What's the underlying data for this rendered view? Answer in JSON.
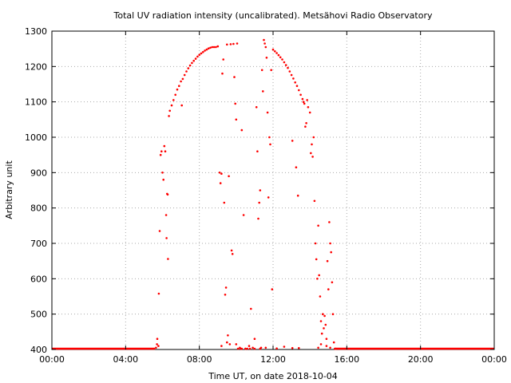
{
  "chart_data": {
    "type": "scatter",
    "title": "Total UV radiation intensity (uncalibrated). Metsähovi Radio Observatory",
    "xlabel": "Time UT, on date 2018-10-04",
    "ylabel": "Arbitrary unit",
    "xlim": [
      0,
      24
    ],
    "ylim": [
      400,
      1300
    ],
    "x_ticks": [
      0,
      4,
      8,
      12,
      16,
      20,
      24
    ],
    "x_tick_labels": [
      "00:00",
      "04:00",
      "08:00",
      "12:00",
      "16:00",
      "20:00",
      "00:00"
    ],
    "y_ticks": [
      400,
      500,
      600,
      700,
      800,
      900,
      1000,
      1100,
      1200,
      1300
    ],
    "y_tick_labels": [
      "400",
      "500",
      "600",
      "700",
      "800",
      "900",
      "1000",
      "1100",
      "1200",
      "1300"
    ],
    "grid": true,
    "legend": "none",
    "point_color": "#ff0000",
    "series": [
      {
        "values": [
          [
            5.65,
            405
          ],
          [
            5.7,
            415
          ],
          [
            5.72,
            430
          ],
          [
            5.78,
            410
          ],
          [
            5.8,
            558
          ],
          [
            5.85,
            735
          ],
          [
            5.9,
            950
          ],
          [
            5.95,
            960
          ],
          [
            6.0,
            900
          ],
          [
            6.05,
            880
          ],
          [
            6.1,
            975
          ],
          [
            6.15,
            960
          ],
          [
            6.2,
            780
          ],
          [
            6.22,
            715
          ],
          [
            6.25,
            840
          ],
          [
            6.28,
            838
          ],
          [
            6.3,
            656
          ],
          [
            6.35,
            1060
          ],
          [
            6.4,
            1075
          ],
          [
            6.5,
            1090
          ],
          [
            6.6,
            1105
          ],
          [
            6.7,
            1120
          ],
          [
            6.8,
            1135
          ],
          [
            6.9,
            1145
          ],
          [
            7.0,
            1158
          ],
          [
            7.05,
            1090
          ],
          [
            7.1,
            1165
          ],
          [
            7.2,
            1176
          ],
          [
            7.3,
            1186
          ],
          [
            7.4,
            1195
          ],
          [
            7.5,
            1203
          ],
          [
            7.6,
            1210
          ],
          [
            7.7,
            1216
          ],
          [
            7.8,
            1222
          ],
          [
            7.9,
            1228
          ],
          [
            8.0,
            1233
          ],
          [
            8.1,
            1237
          ],
          [
            8.2,
            1241
          ],
          [
            8.3,
            1245
          ],
          [
            8.4,
            1248
          ],
          [
            8.5,
            1251
          ],
          [
            8.6,
            1253
          ],
          [
            8.7,
            1255
          ],
          [
            8.8,
            1255
          ],
          [
            8.9,
            1255
          ],
          [
            9.0,
            1257
          ],
          [
            9.1,
            900
          ],
          [
            9.15,
            870
          ],
          [
            9.2,
            897
          ],
          [
            9.25,
            1180
          ],
          [
            9.3,
            1220
          ],
          [
            9.35,
            815
          ],
          [
            9.4,
            555
          ],
          [
            9.45,
            575
          ],
          [
            9.5,
            1262
          ],
          [
            9.55,
            440
          ],
          [
            9.6,
            890
          ],
          [
            9.65,
            415
          ],
          [
            9.7,
            1263
          ],
          [
            9.75,
            680
          ],
          [
            9.8,
            670
          ],
          [
            9.85,
            1264
          ],
          [
            9.9,
            1170
          ],
          [
            9.95,
            1095
          ],
          [
            10.0,
            1050
          ],
          [
            10.05,
            1265
          ],
          [
            10.1,
            400
          ],
          [
            10.2,
            405
          ],
          [
            10.3,
            1020
          ],
          [
            10.4,
            780
          ],
          [
            10.5,
            402
          ],
          [
            10.6,
            400
          ],
          [
            10.7,
            410
          ],
          [
            10.8,
            515
          ],
          [
            10.9,
            405
          ],
          [
            11.0,
            430
          ],
          [
            11.1,
            1085
          ],
          [
            11.15,
            960
          ],
          [
            11.2,
            770
          ],
          [
            11.25,
            815
          ],
          [
            11.3,
            850
          ],
          [
            11.35,
            405
          ],
          [
            11.4,
            1190
          ],
          [
            11.45,
            1130
          ],
          [
            11.5,
            1275
          ],
          [
            11.55,
            1265
          ],
          [
            11.6,
            1255
          ],
          [
            11.65,
            1225
          ],
          [
            11.7,
            1070
          ],
          [
            11.75,
            830
          ],
          [
            11.8,
            1000
          ],
          [
            11.85,
            980
          ],
          [
            11.9,
            1190
          ],
          [
            11.95,
            570
          ],
          [
            12.0,
            1248
          ],
          [
            12.1,
            1243
          ],
          [
            12.2,
            1238
          ],
          [
            12.3,
            1232
          ],
          [
            12.4,
            1226
          ],
          [
            12.5,
            1220
          ],
          [
            12.6,
            1212
          ],
          [
            12.7,
            1204
          ],
          [
            12.8,
            1196
          ],
          [
            12.9,
            1186
          ],
          [
            13.0,
            1176
          ],
          [
            13.05,
            990
          ],
          [
            13.1,
            1166
          ],
          [
            13.2,
            1155
          ],
          [
            13.25,
            915
          ],
          [
            13.3,
            1145
          ],
          [
            13.35,
            835
          ],
          [
            13.4,
            1133
          ],
          [
            13.5,
            1120
          ],
          [
            13.6,
            1108
          ],
          [
            13.65,
            1100
          ],
          [
            13.7,
            1095
          ],
          [
            13.75,
            1030
          ],
          [
            13.8,
            1040
          ],
          [
            13.85,
            1105
          ],
          [
            13.9,
            1085
          ],
          [
            14.0,
            1070
          ],
          [
            14.05,
            955
          ],
          [
            14.1,
            980
          ],
          [
            14.15,
            945
          ],
          [
            14.2,
            1000
          ],
          [
            14.25,
            820
          ],
          [
            14.3,
            700
          ],
          [
            14.35,
            655
          ],
          [
            14.4,
            600
          ],
          [
            14.45,
            750
          ],
          [
            14.5,
            610
          ],
          [
            14.55,
            550
          ],
          [
            14.6,
            480
          ],
          [
            14.65,
            445
          ],
          [
            14.7,
            500
          ],
          [
            14.75,
            460
          ],
          [
            14.8,
            495
          ],
          [
            14.85,
            470
          ],
          [
            14.9,
            430
          ],
          [
            14.95,
            650
          ],
          [
            15.0,
            570
          ],
          [
            15.05,
            760
          ],
          [
            15.1,
            700
          ],
          [
            15.15,
            675
          ],
          [
            15.2,
            590
          ],
          [
            15.25,
            500
          ],
          [
            15.3,
            420
          ],
          [
            15.35,
            402
          ],
          [
            15.4,
            400
          ],
          [
            10.3,
            400
          ],
          [
            10.5,
            402
          ],
          [
            11.0,
            400
          ],
          [
            11.3,
            400
          ],
          [
            12.2,
            403
          ],
          [
            12.6,
            408
          ],
          [
            13.4,
            404
          ],
          [
            9.5,
            420
          ],
          [
            9.2,
            410
          ],
          [
            10.0,
            415
          ],
          [
            14.6,
            415
          ],
          [
            14.9,
            410
          ],
          [
            15.1,
            405
          ],
          [
            10.25,
            401
          ],
          [
            10.75,
            402
          ],
          [
            11.6,
            405
          ],
          [
            13.05,
            404
          ],
          [
            14.45,
            405
          ]
        ]
      }
    ]
  }
}
